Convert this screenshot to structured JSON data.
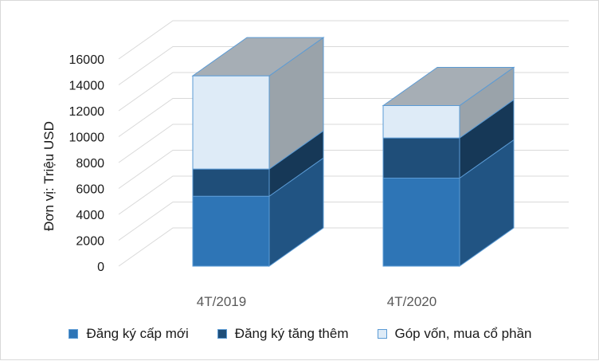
{
  "chart_data": {
    "type": "bar",
    "stacked": true,
    "three_d": true,
    "categories": [
      "4T/2019",
      "4T/2020"
    ],
    "series": [
      {
        "name": "Đăng ký cấp mới",
        "values": [
          5400,
          6800
        ],
        "color": "#2e75b6"
      },
      {
        "name": "Đăng ký tăng thêm",
        "values": [
          2100,
          3100
        ],
        "color": "#1f4e79"
      },
      {
        "name": "Góp vốn, mua cổ phần",
        "values": [
          7200,
          2500
        ],
        "color": "#deebf7"
      }
    ],
    "ylabel": "Đơn vị: Triệu USD",
    "ylim": [
      0,
      16000
    ],
    "yticks": [
      0,
      2000,
      4000,
      6000,
      8000,
      10000,
      12000,
      14000,
      16000
    ],
    "grid": true,
    "legend_position": "bottom",
    "top_face_color": "#a6aeb5",
    "edge_color": "#5b9bd5"
  }
}
